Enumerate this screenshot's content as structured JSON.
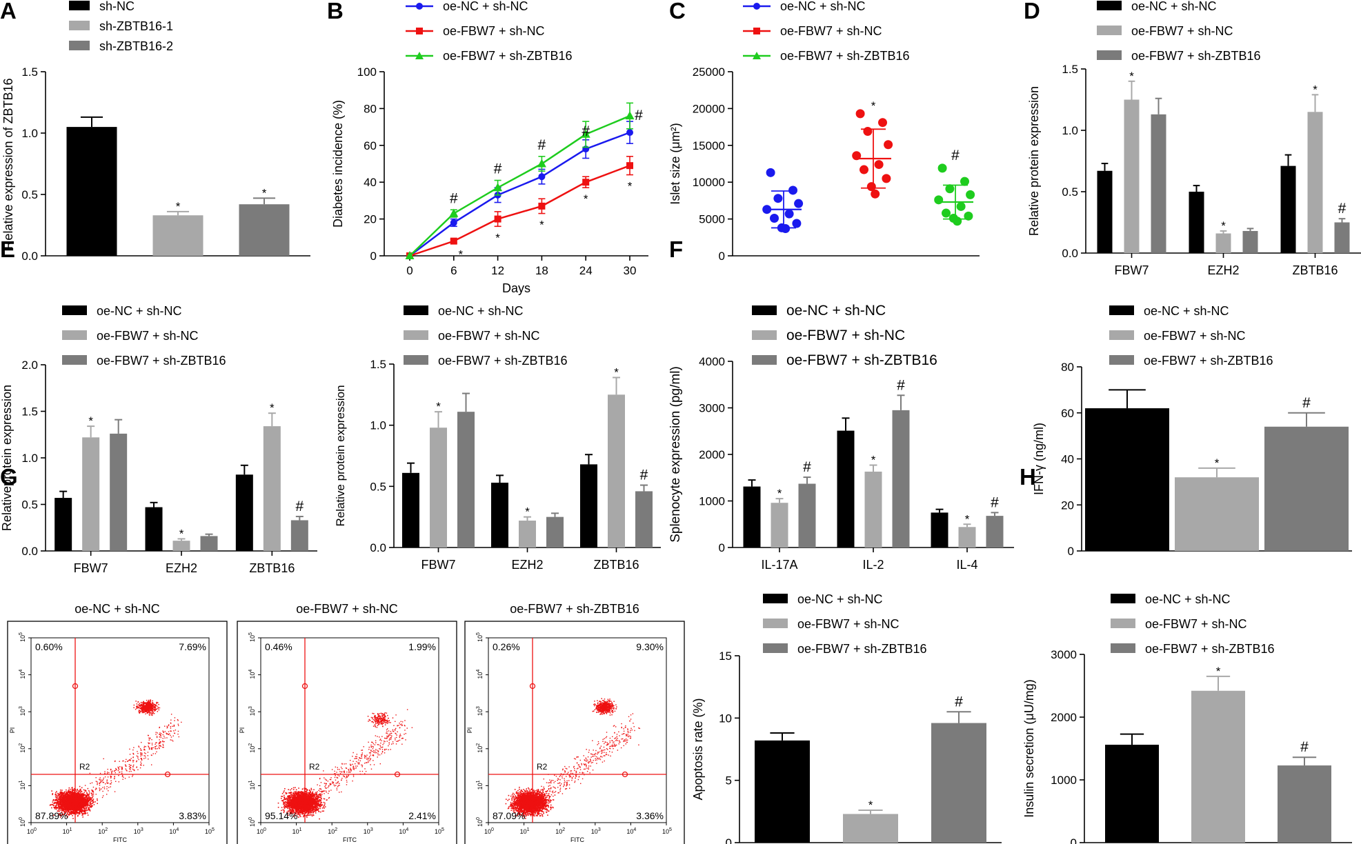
{
  "figure": {
    "colors": {
      "black": "#000000",
      "light_gray": "#a8a8a8",
      "dark_gray": "#7b7b7b",
      "blue": "#1a1aee",
      "red": "#ee1111",
      "green": "#1ecc1e",
      "flow_red": "#ee1111"
    }
  },
  "chart_data": [
    {
      "panel": "A",
      "type": "bar",
      "ylabel": "Relative expression of ZBTB16",
      "ylim": [
        0,
        1.5
      ],
      "yticks": [
        "0.0",
        "0.5",
        "1.0",
        "1.5"
      ],
      "legend": [
        "sh-NC",
        "sh-ZBTB16-1",
        "sh-ZBTB16-2"
      ],
      "groups": [
        {
          "name": "",
          "values": [
            1.05,
            0.33,
            0.42
          ],
          "errors": [
            0.08,
            0.03,
            0.05
          ],
          "marks": [
            "",
            "*",
            "*"
          ]
        }
      ]
    },
    {
      "panel": "B",
      "type": "line",
      "xlabel": "Days",
      "ylabel": "Diabetes incidence (%)",
      "ylim": [
        0,
        100
      ],
      "x": [
        0,
        6,
        12,
        18,
        24,
        30
      ],
      "xticks": [
        "0",
        "6",
        "12",
        "18",
        "24",
        "30"
      ],
      "yticks": [
        "0",
        "20",
        "40",
        "60",
        "80",
        "100"
      ],
      "series": [
        {
          "name": "oe-NC + sh-NC",
          "values": [
            0,
            18,
            33,
            43,
            58,
            67
          ],
          "errors": [
            0,
            2,
            4,
            4,
            5,
            6
          ],
          "marks": [
            "",
            "",
            "",
            "",
            "",
            ""
          ]
        },
        {
          "name": "oe-FBW7 + sh-NC",
          "values": [
            0,
            8,
            20,
            27,
            40,
            49
          ],
          "errors": [
            0,
            1,
            4,
            4,
            3,
            5
          ],
          "marks": [
            "",
            "*",
            "*",
            "*",
            "*",
            "*"
          ]
        },
        {
          "name": "oe-FBW7 + sh-ZBTB16",
          "values": [
            0,
            23,
            37,
            50,
            66,
            76
          ],
          "errors": [
            0,
            2,
            4,
            4,
            7,
            7
          ],
          "marks": [
            "",
            "#",
            "#",
            "#",
            "#",
            "#"
          ]
        }
      ]
    },
    {
      "panel": "C",
      "type": "scatter",
      "ylabel": "Islet size (μm²)",
      "ylim": [
        0,
        25000
      ],
      "yticks": [
        "0",
        "5000",
        "10000",
        "15000",
        "20000",
        "25000"
      ],
      "groups": [
        {
          "name": "oe-NC + sh-NC",
          "values": [
            11300,
            8900,
            7800,
            7100,
            6300,
            5700,
            5100,
            4400,
            3800,
            3700
          ],
          "mean": 6300,
          "sd": 2500,
          "mark": ""
        },
        {
          "name": "oe-FBW7 + sh-NC",
          "values": [
            19300,
            18100,
            16900,
            15100,
            13600,
            12400,
            11700,
            10500,
            9400,
            8400
          ],
          "mean": 13200,
          "sd": 4000,
          "mark": "*"
        },
        {
          "name": "oe-FBW7 + sh-ZBTB16",
          "values": [
            11900,
            10100,
            9100,
            8300,
            7600,
            6700,
            5800,
            5400,
            5100,
            4700
          ],
          "mean": 7300,
          "sd": 2300,
          "mark": "#"
        }
      ]
    },
    {
      "panel": "D",
      "type": "bar",
      "ylabel": "Relative protein expression",
      "ylim": [
        0,
        1.5
      ],
      "yticks": [
        "0.0",
        "0.5",
        "1.0",
        "1.5"
      ],
      "legend": [
        "oe-NC + sh-NC",
        "oe-FBW7 + sh-NC",
        "oe-FBW7 + sh-ZBTB16"
      ],
      "groups": [
        {
          "name": "FBW7",
          "values": [
            0.67,
            1.25,
            1.13
          ],
          "errors": [
            0.06,
            0.15,
            0.13
          ],
          "marks": [
            "",
            "*",
            ""
          ]
        },
        {
          "name": "EZH2",
          "values": [
            0.5,
            0.16,
            0.18
          ],
          "errors": [
            0.05,
            0.02,
            0.02
          ],
          "marks": [
            "",
            "*",
            ""
          ]
        },
        {
          "name": "ZBTB16",
          "values": [
            0.71,
            1.15,
            0.25
          ],
          "errors": [
            0.09,
            0.14,
            0.03
          ],
          "marks": [
            "",
            "*",
            "#"
          ]
        }
      ]
    },
    {
      "panel": "E",
      "type": "bar",
      "ylabel": "Relativeprotein expression",
      "ylim": [
        0,
        2.0
      ],
      "yticks": [
        "0.0",
        "0.5",
        "1.0",
        "1.5",
        "2.0"
      ],
      "legend": [
        "oe-NC + sh-NC",
        "oe-FBW7 + sh-NC",
        "oe-FBW7 + sh-ZBTB16"
      ],
      "groups": [
        {
          "name": "FBW7",
          "values": [
            0.57,
            1.22,
            1.26
          ],
          "errors": [
            0.07,
            0.12,
            0.15
          ],
          "marks": [
            "",
            "*",
            ""
          ]
        },
        {
          "name": "EZH2",
          "values": [
            0.47,
            0.11,
            0.16
          ],
          "errors": [
            0.05,
            0.02,
            0.02
          ],
          "marks": [
            "",
            "*",
            ""
          ]
        },
        {
          "name": "ZBTB16",
          "values": [
            0.82,
            1.34,
            0.33
          ],
          "errors": [
            0.1,
            0.14,
            0.04
          ],
          "marks": [
            "",
            "*",
            "#"
          ]
        }
      ]
    },
    {
      "panel": "E2",
      "type": "bar",
      "ylabel": "Relative protein expression",
      "ylim": [
        0,
        1.5
      ],
      "yticks": [
        "0.0",
        "0.5",
        "1.0",
        "1.5"
      ],
      "legend": [
        "oe-NC + sh-NC",
        "oe-FBW7 + sh-NC",
        "oe-FBW7 + sh-ZBTB16"
      ],
      "groups": [
        {
          "name": "FBW7",
          "values": [
            0.61,
            0.98,
            1.11
          ],
          "errors": [
            0.08,
            0.13,
            0.15
          ],
          "marks": [
            "",
            "*",
            ""
          ]
        },
        {
          "name": "EZH2",
          "values": [
            0.53,
            0.22,
            0.25
          ],
          "errors": [
            0.06,
            0.03,
            0.03
          ],
          "marks": [
            "",
            "*",
            ""
          ]
        },
        {
          "name": "ZBTB16",
          "values": [
            0.68,
            1.25,
            0.46
          ],
          "errors": [
            0.08,
            0.14,
            0.05
          ],
          "marks": [
            "",
            "*",
            "#"
          ]
        }
      ]
    },
    {
      "panel": "F",
      "type": "bar",
      "ylabel": "Splenocyte expression (pg/ml)",
      "ylim": [
        0,
        4000
      ],
      "yticks": [
        "0",
        "1000",
        "2000",
        "3000",
        "4000"
      ],
      "legend": [
        "oe-NC + sh-NC",
        "oe-FBW7 + sh-NC",
        "oe-FBW7 + sh-ZBTB16"
      ],
      "groups": [
        {
          "name": "IL-17A",
          "values": [
            1310,
            960,
            1370
          ],
          "errors": [
            140,
            90,
            140
          ],
          "marks": [
            "",
            "*",
            "#"
          ]
        },
        {
          "name": "IL-2",
          "values": [
            2510,
            1630,
            2950
          ],
          "errors": [
            270,
            140,
            320
          ],
          "marks": [
            "",
            "*",
            "#"
          ]
        },
        {
          "name": "IL-4",
          "values": [
            750,
            440,
            680
          ],
          "errors": [
            70,
            60,
            70
          ],
          "marks": [
            "",
            "*",
            "#"
          ]
        }
      ]
    },
    {
      "panel": "F2",
      "type": "bar",
      "ylabel": "IFN-γ (ng/ml)",
      "ylim": [
        0,
        80
      ],
      "yticks": [
        "0",
        "20",
        "40",
        "60",
        "80"
      ],
      "legend": [
        "oe-NC + sh-NC",
        "oe-FBW7 + sh-NC",
        "oe-FBW7 + sh-ZBTB16"
      ],
      "groups": [
        {
          "name": "",
          "values": [
            62,
            32,
            54
          ],
          "errors": [
            8,
            4,
            6
          ],
          "marks": [
            "",
            "*",
            "#"
          ]
        }
      ]
    },
    {
      "panel": "G",
      "type": "bar",
      "ylabel": "Apoptosis rate (%)",
      "ylim": [
        0,
        15
      ],
      "yticks": [
        "0",
        "5",
        "10",
        "15"
      ],
      "legend": [
        "oe-NC + sh-NC",
        "oe-FBW7 + sh-NC",
        "oe-FBW7 + sh-ZBTB16"
      ],
      "groups": [
        {
          "name": "",
          "values": [
            8.2,
            2.3,
            9.6
          ],
          "errors": [
            0.6,
            0.3,
            0.9
          ],
          "marks": [
            "",
            "*",
            "#"
          ]
        }
      ]
    },
    {
      "panel": "H",
      "type": "bar",
      "ylabel": "Insulin secretion (μU/mg)",
      "ylim": [
        0,
        3000
      ],
      "yticks": [
        "0",
        "1000",
        "2000",
        "3000"
      ],
      "legend": [
        "oe-NC + sh-NC",
        "oe-FBW7 + sh-NC",
        "oe-FBW7 + sh-ZBTB16"
      ],
      "groups": [
        {
          "name": "",
          "values": [
            1560,
            2420,
            1230
          ],
          "errors": [
            170,
            230,
            130
          ],
          "marks": [
            "",
            "*",
            "#"
          ]
        }
      ]
    }
  ],
  "flow": {
    "xlabel": "FITC",
    "ylabel": "PI",
    "gate": "R2",
    "tick_base": "10",
    "tick_exps": [
      "0",
      "1",
      "2",
      "3",
      "4",
      "5"
    ],
    "plots": [
      {
        "title": "oe-NC + sh-NC",
        "ul": "0.60%",
        "ur": "7.69%",
        "ll": "87.89%",
        "lr": "3.83%"
      },
      {
        "title": "oe-FBW7 + sh-NC",
        "ul": "0.46%",
        "ur": "1.99%",
        "ll": "95.14%",
        "lr": "2.41%"
      },
      {
        "title": "oe-FBW7 + sh-ZBTB16",
        "ul": "0.26%",
        "ur": "9.30%",
        "ll": "87.09%",
        "lr": "3.36%"
      }
    ]
  },
  "panel_labels": [
    "A",
    "B",
    "C",
    "D",
    "E",
    "F",
    "G",
    "H"
  ]
}
